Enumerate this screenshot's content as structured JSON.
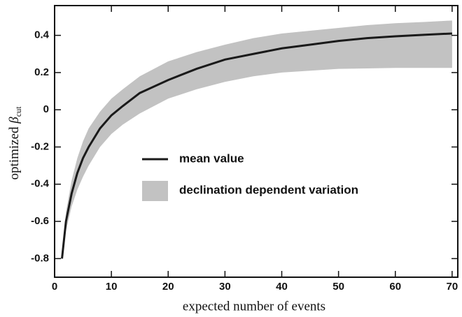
{
  "chart_data": {
    "type": "line",
    "xlabel": "expected number of events",
    "ylabel": {
      "text": "optimized ",
      "symbol": "β",
      "subscript": "cut"
    },
    "x": [
      1.3,
      2,
      3,
      4,
      5,
      6,
      8,
      10,
      12,
      15,
      20,
      25,
      30,
      35,
      40,
      45,
      50,
      55,
      60,
      65,
      70
    ],
    "series": [
      {
        "name": "mean value",
        "color": "#1a1a1a",
        "values": [
          -0.8,
          -0.6,
          -0.45,
          -0.34,
          -0.26,
          -0.2,
          -0.1,
          -0.03,
          0.02,
          0.09,
          0.16,
          0.22,
          0.27,
          0.3,
          0.33,
          0.35,
          0.37,
          0.385,
          0.395,
          0.403,
          0.41
        ]
      }
    ],
    "band": {
      "name": "declination dependent variation",
      "color": "#c2c2c2",
      "upper": [
        -0.8,
        -0.55,
        -0.38,
        -0.26,
        -0.17,
        -0.1,
        -0.01,
        0.06,
        0.11,
        0.18,
        0.26,
        0.31,
        0.35,
        0.385,
        0.41,
        0.425,
        0.44,
        0.455,
        0.465,
        0.472,
        0.48
      ],
      "lower": [
        -0.8,
        -0.65,
        -0.52,
        -0.43,
        -0.36,
        -0.3,
        -0.2,
        -0.13,
        -0.08,
        -0.02,
        0.06,
        0.11,
        0.15,
        0.18,
        0.2,
        0.21,
        0.22,
        0.222,
        0.225,
        0.225,
        0.225
      ]
    },
    "xlim": [
      0,
      71
    ],
    "ylim": [
      -0.9,
      0.56
    ],
    "xticks": [
      0,
      10,
      20,
      30,
      40,
      50,
      60,
      70
    ],
    "yticks": [
      -0.8,
      -0.6,
      -0.4,
      -0.2,
      0,
      0.2,
      0.4
    ],
    "grid": false
  }
}
